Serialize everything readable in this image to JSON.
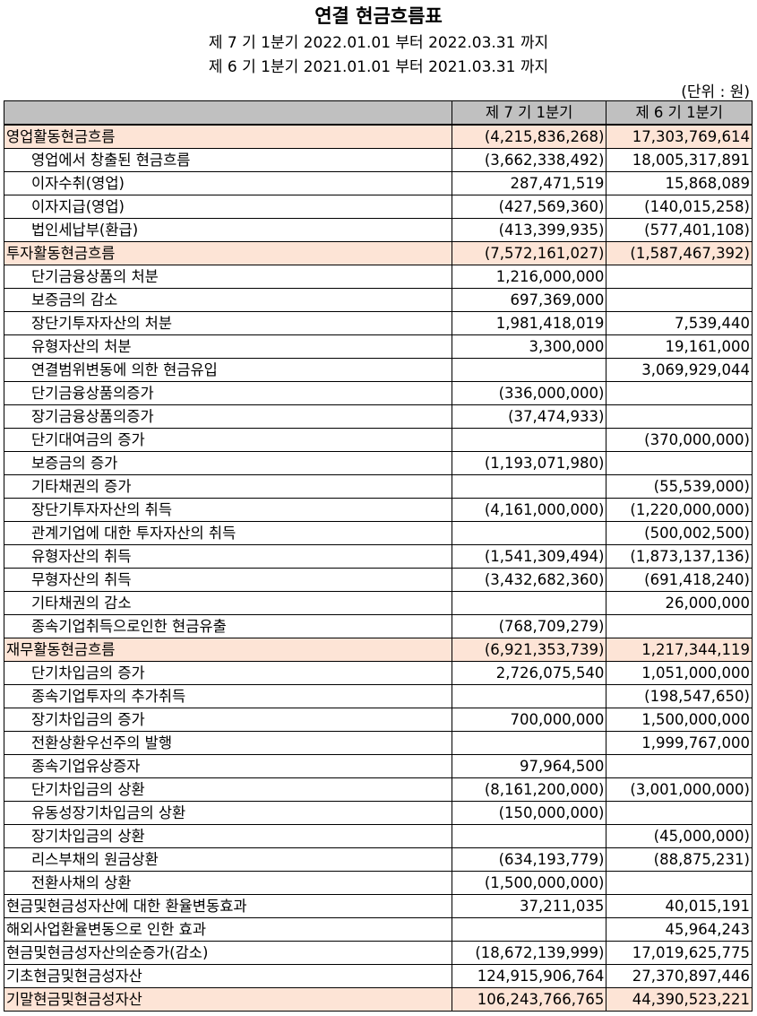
{
  "header": {
    "title": "연결 현금흐름표",
    "period_current": "제 7 기 1분기 2022.01.01 부터 2022.03.31 까지",
    "period_prior": "제 6 기 1분기 2021.01.01 부터 2021.03.31 까지",
    "unit": "(단위 : 원)"
  },
  "table": {
    "columns": [
      "",
      "제 7 기 1분기",
      "제 6 기 1분기"
    ],
    "highlight_color": "#fde4d6",
    "header_color": "#c0c0c0",
    "rows": [
      {
        "type": "section",
        "label": "영업활동현금흐름",
        "current": "(4,215,836,268)",
        "prior": "17,303,769,614"
      },
      {
        "type": "item",
        "label": "영업에서 창출된 현금흐름",
        "current": "(3,662,338,492)",
        "prior": "18,005,317,891"
      },
      {
        "type": "item",
        "label": "이자수취(영업)",
        "current": "287,471,519",
        "prior": "15,868,089"
      },
      {
        "type": "item",
        "label": "이자지급(영업)",
        "current": "(427,569,360)",
        "prior": "(140,015,258)"
      },
      {
        "type": "item",
        "label": "법인세납부(환급)",
        "current": "(413,399,935)",
        "prior": "(577,401,108)"
      },
      {
        "type": "section",
        "label": "투자활동현금흐름",
        "current": "(7,572,161,027)",
        "prior": "(1,587,467,392)"
      },
      {
        "type": "item",
        "label": "단기금융상품의 처분",
        "current": "1,216,000,000",
        "prior": ""
      },
      {
        "type": "item",
        "label": "보증금의 감소",
        "current": "697,369,000",
        "prior": ""
      },
      {
        "type": "item",
        "label": "장단기투자자산의 처분",
        "current": "1,981,418,019",
        "prior": "7,539,440"
      },
      {
        "type": "item",
        "label": "유형자산의 처분",
        "current": "3,300,000",
        "prior": "19,161,000"
      },
      {
        "type": "item",
        "label": "연결범위변동에 의한 현금유입",
        "current": "",
        "prior": "3,069,929,044"
      },
      {
        "type": "item",
        "label": "단기금융상품의증가",
        "current": "(336,000,000)",
        "prior": ""
      },
      {
        "type": "item",
        "label": "장기금융상품의증가",
        "current": "(37,474,933)",
        "prior": ""
      },
      {
        "type": "item",
        "label": "단기대여금의 증가",
        "current": "",
        "prior": "(370,000,000)"
      },
      {
        "type": "item",
        "label": "보증금의 증가",
        "current": "(1,193,071,980)",
        "prior": ""
      },
      {
        "type": "item",
        "label": "기타채권의 증가",
        "current": "",
        "prior": "(55,539,000)"
      },
      {
        "type": "item",
        "label": "장단기투자자산의 취득",
        "current": "(4,161,000,000)",
        "prior": "(1,220,000,000)"
      },
      {
        "type": "item",
        "label": "관계기업에 대한 투자자산의 취득",
        "current": "",
        "prior": "(500,002,500)"
      },
      {
        "type": "item",
        "label": "유형자산의 취득",
        "current": "(1,541,309,494)",
        "prior": "(1,873,137,136)"
      },
      {
        "type": "item",
        "label": "무형자산의 취득",
        "current": "(3,432,682,360)",
        "prior": "(691,418,240)"
      },
      {
        "type": "item",
        "label": "기타채권의 감소",
        "current": "",
        "prior": "26,000,000"
      },
      {
        "type": "item",
        "label": "종속기업취득으로인한 현금유출",
        "current": "(768,709,279)",
        "prior": ""
      },
      {
        "type": "section",
        "label": "재무활동현금흐름",
        "current": "(6,921,353,739)",
        "prior": "1,217,344,119"
      },
      {
        "type": "item",
        "label": "단기차입금의 증가",
        "current": "2,726,075,540",
        "prior": "1,051,000,000"
      },
      {
        "type": "item",
        "label": "종속기업투자의 추가취득",
        "current": "",
        "prior": "(198,547,650)"
      },
      {
        "type": "item",
        "label": "장기차입금의 증가",
        "current": "700,000,000",
        "prior": "1,500,000,000"
      },
      {
        "type": "item",
        "label": "전환상환우선주의 발행",
        "current": "",
        "prior": "1,999,767,000"
      },
      {
        "type": "item",
        "label": "종속기업유상증자",
        "current": "97,964,500",
        "prior": ""
      },
      {
        "type": "item",
        "label": "단기차입금의 상환",
        "current": "(8,161,200,000)",
        "prior": "(3,001,000,000)"
      },
      {
        "type": "item",
        "label": "유동성장기차입금의 상환",
        "current": "(150,000,000)",
        "prior": ""
      },
      {
        "type": "item",
        "label": "장기차입금의 상환",
        "current": "",
        "prior": "(45,000,000)"
      },
      {
        "type": "item",
        "label": "리스부채의 원금상환",
        "current": "(634,193,779)",
        "prior": "(88,875,231)"
      },
      {
        "type": "item",
        "label": "전환사채의 상환",
        "current": "(1,500,000,000)",
        "prior": ""
      },
      {
        "type": "total",
        "label": "현금및현금성자산에 대한 환율변동효과",
        "current": "37,211,035",
        "prior": "40,015,191"
      },
      {
        "type": "total",
        "label": "해외사업환율변동으로 인한 효과",
        "current": "",
        "prior": "45,964,243"
      },
      {
        "type": "total",
        "label": "현금및현금성자산의순증가(감소)",
        "current": "(18,672,139,999)",
        "prior": "17,019,625,775"
      },
      {
        "type": "total",
        "label": "기초현금및현금성자산",
        "current": "124,915,906,764",
        "prior": "27,370,897,446"
      },
      {
        "type": "section",
        "label": "기말현금및현금성자산",
        "current": "106,243,766,765",
        "prior": "44,390,523,221"
      }
    ]
  }
}
